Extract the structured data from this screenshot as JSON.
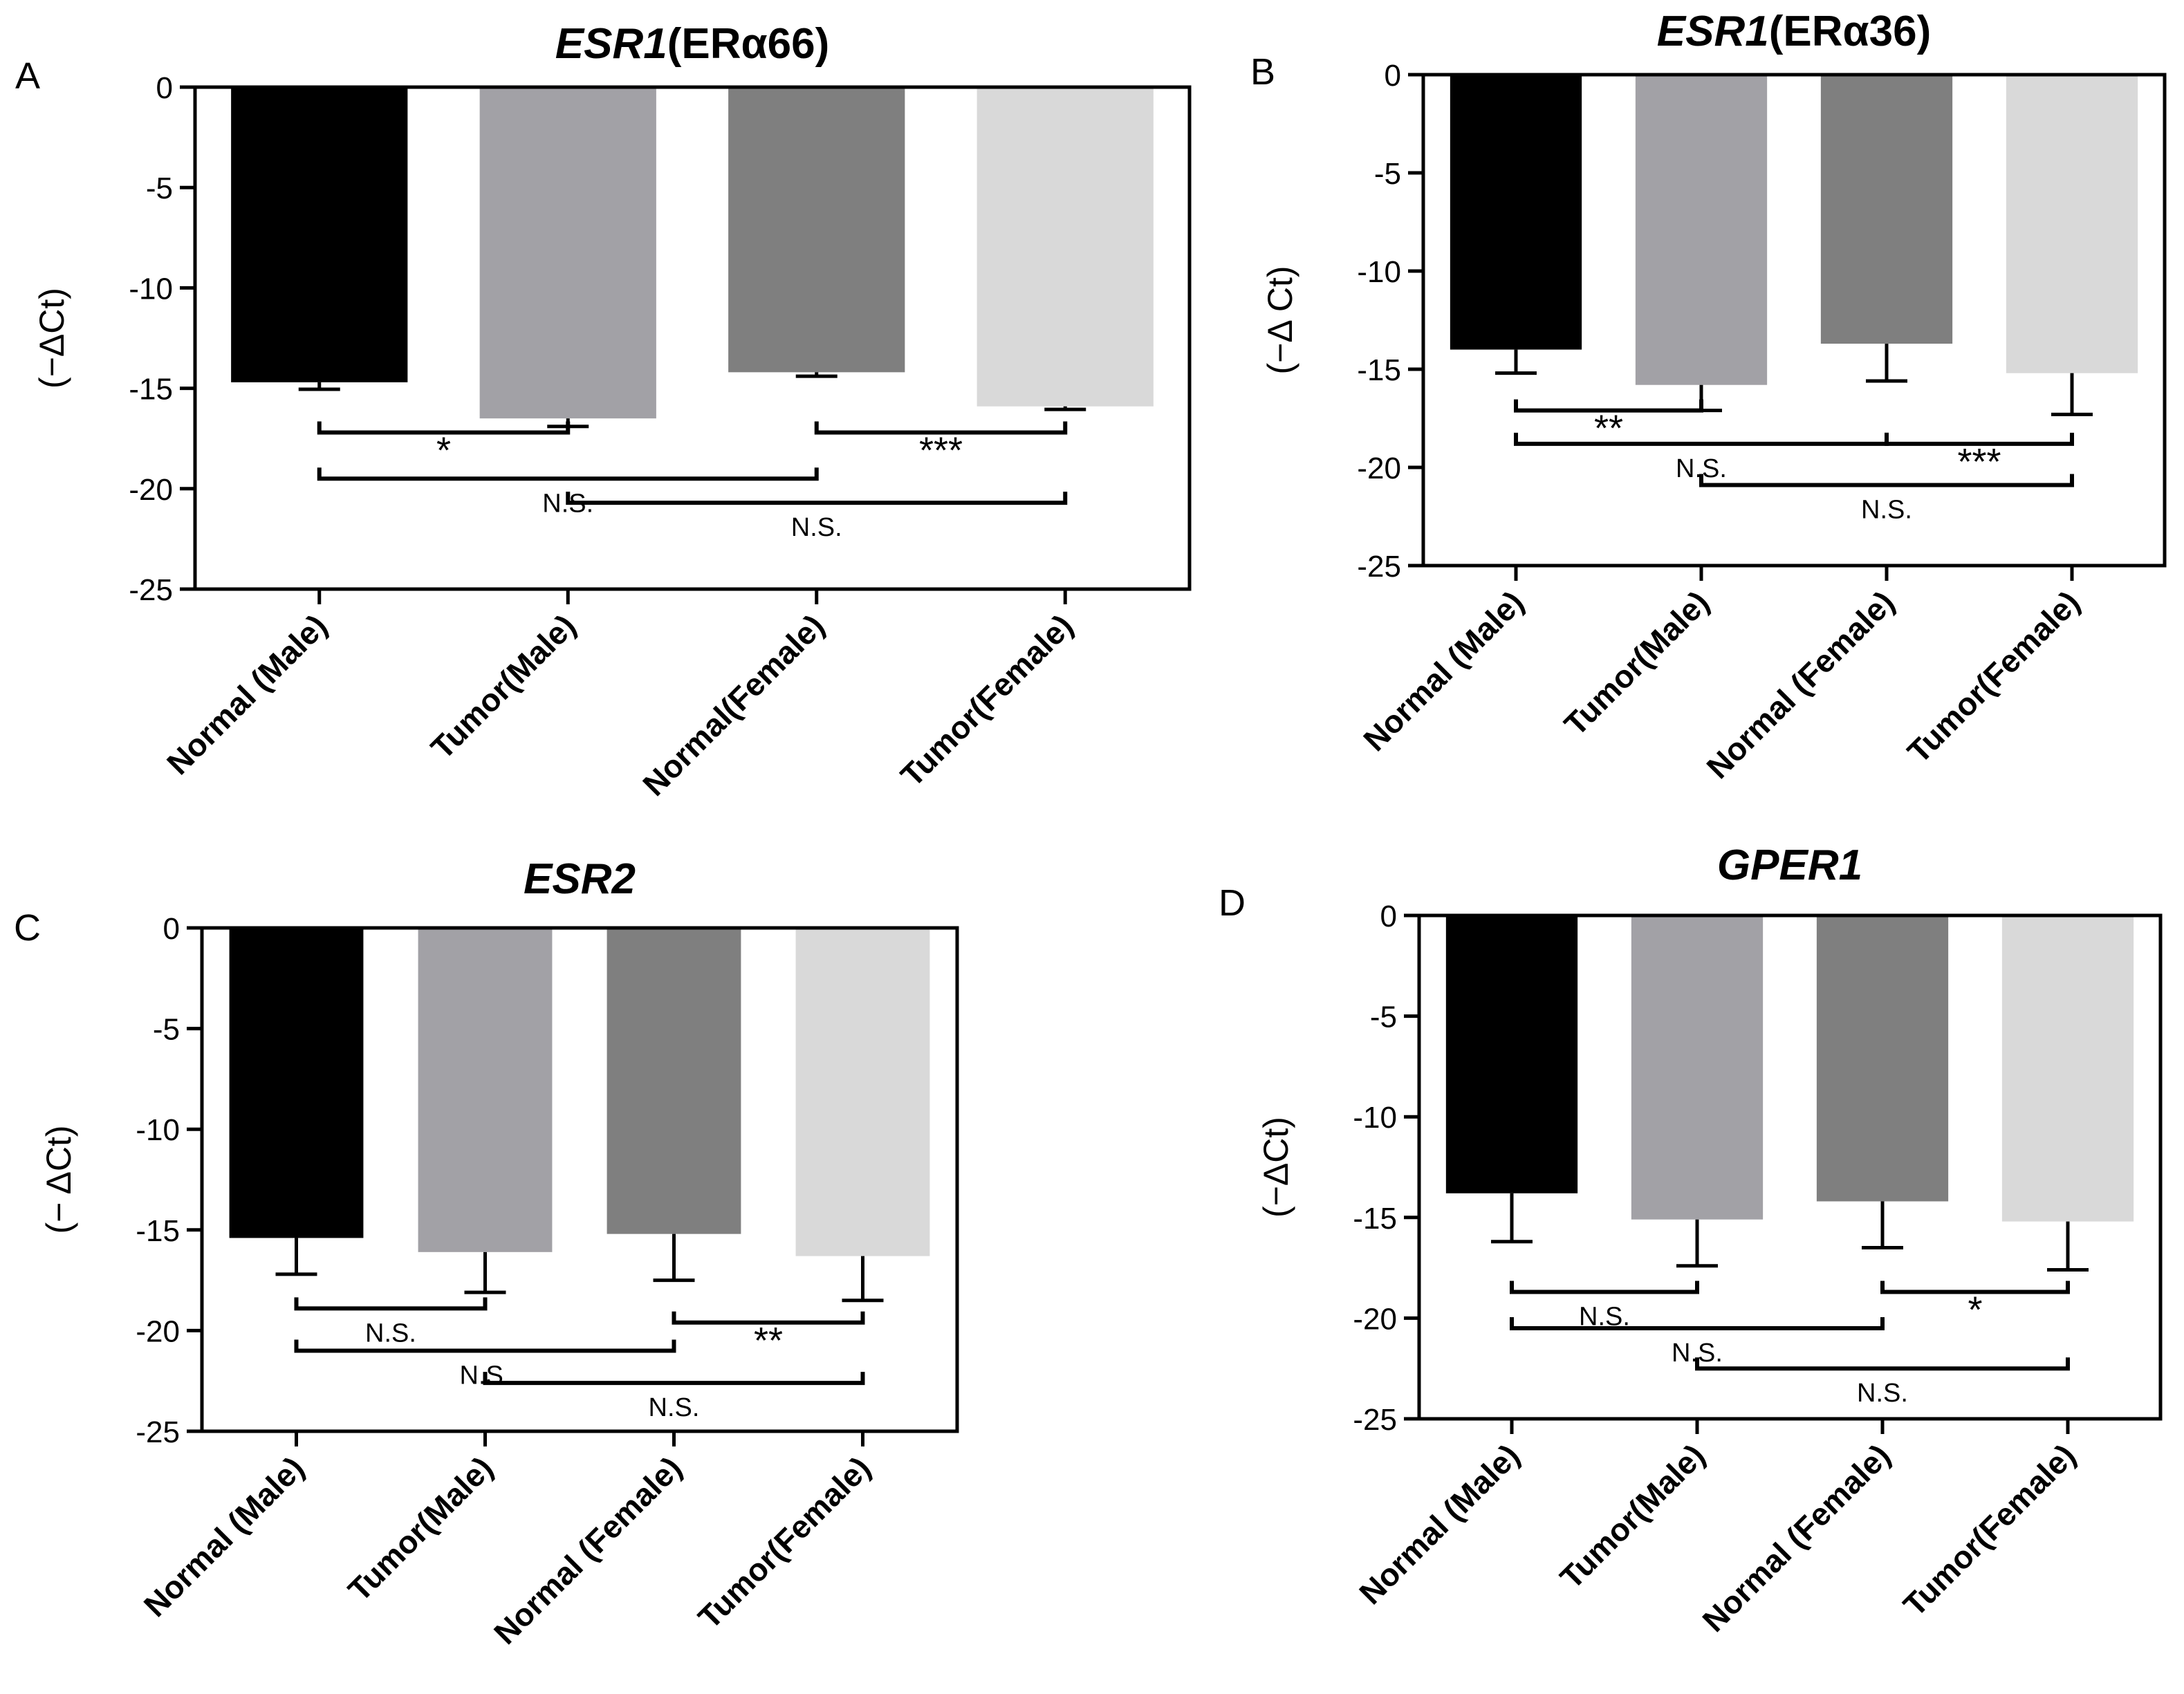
{
  "chart_data": [
    {
      "type": "bar",
      "panel_label": "A",
      "title": "ESR1",
      "title_suffix": "(ERα66)",
      "ylabel": "(−ΔCt)",
      "ylim": [
        -25,
        0
      ],
      "yticks": [
        0,
        -5,
        -10,
        -15,
        -20,
        -25
      ],
      "categories": [
        "Normal (Male)",
        "Tumor(Male)",
        "Normal(Female)",
        "Tumor(Female)"
      ],
      "values": [
        -14.7,
        -16.5,
        -14.2,
        -15.9
      ],
      "errors": [
        0.35,
        0.4,
        0.2,
        0.15
      ],
      "colors": [
        "#000000",
        "#a2a1a6",
        "#7f7f7f",
        "#d9d9d9"
      ],
      "significance": [
        {
          "from": 0,
          "to": 1,
          "label": "*",
          "y": -17.2
        },
        {
          "from": 2,
          "to": 3,
          "label": "***",
          "y": -17.2
        },
        {
          "from": 0,
          "to": 2,
          "label": "N.S.",
          "y": -19.5
        },
        {
          "from": 1,
          "to": 3,
          "label": "N.S.",
          "y": -20.7
        }
      ]
    },
    {
      "type": "bar",
      "panel_label": "B",
      "title": "ESR1",
      "title_suffix": "(ERα36)",
      "ylabel": "(−Δ Ct)",
      "ylim": [
        -25,
        0
      ],
      "yticks": [
        0,
        -5,
        -10,
        -15,
        -20,
        -25
      ],
      "categories": [
        "Normal (Male)",
        "Tumor(Male)",
        "Normal (Female)",
        "Tumor(Female)"
      ],
      "values": [
        -14.0,
        -15.8,
        -13.7,
        -15.2
      ],
      "errors": [
        1.2,
        1.3,
        1.9,
        2.1
      ],
      "colors": [
        "#000000",
        "#a2a1a6",
        "#7f7f7f",
        "#d9d9d9"
      ],
      "significance": [
        {
          "from": 0,
          "to": 1,
          "label": "**",
          "y": -17.1
        },
        {
          "from": 0,
          "to": 2,
          "label": "N.S.",
          "y": -18.8
        },
        {
          "from": 2,
          "to": 3,
          "label": "***",
          "y": -18.8
        },
        {
          "from": 1,
          "to": 3,
          "label": "N.S.",
          "y": -20.9
        }
      ]
    },
    {
      "type": "bar",
      "panel_label": "C",
      "title": "ESR2",
      "title_suffix": "",
      "ylabel": "(− ΔCt)",
      "ylim": [
        -25,
        0
      ],
      "yticks": [
        0,
        -5,
        -10,
        -15,
        -20,
        -25
      ],
      "categories": [
        "Normal (Male)",
        "Tumor(Male)",
        "Normal (Female)",
        "Tumor(Female)"
      ],
      "values": [
        -15.4,
        -16.1,
        -15.2,
        -16.3
      ],
      "errors": [
        1.8,
        2.0,
        2.3,
        2.2
      ],
      "colors": [
        "#000000",
        "#a2a1a6",
        "#7f7f7f",
        "#d9d9d9"
      ],
      "significance": [
        {
          "from": 0,
          "to": 1,
          "label": "N.S.",
          "y": -18.9
        },
        {
          "from": 2,
          "to": 3,
          "label": "**",
          "y": -19.6
        },
        {
          "from": 0,
          "to": 2,
          "label": "N.S.",
          "y": -21.0
        },
        {
          "from": 1,
          "to": 3,
          "label": "N.S.",
          "y": -22.6
        }
      ]
    },
    {
      "type": "bar",
      "panel_label": "D",
      "title": "GPER1",
      "title_suffix": "",
      "ylabel": "(−ΔCt)",
      "ylim": [
        -25,
        0
      ],
      "yticks": [
        0,
        -5,
        -10,
        -15,
        -20,
        -25
      ],
      "categories": [
        "Normal (Male)",
        "Tumor(Male)",
        "Normal (Female)",
        "Tumor(Female)"
      ],
      "values": [
        -13.8,
        -15.1,
        -14.2,
        -15.2
      ],
      "errors": [
        2.4,
        2.3,
        2.3,
        2.4
      ],
      "colors": [
        "#000000",
        "#a2a1a6",
        "#7f7f7f",
        "#d9d9d9"
      ],
      "significance": [
        {
          "from": 0,
          "to": 1,
          "label": "N.S.",
          "y": -18.7
        },
        {
          "from": 2,
          "to": 3,
          "label": "*",
          "y": -18.7
        },
        {
          "from": 0,
          "to": 2,
          "label": "N.S.",
          "y": -20.5
        },
        {
          "from": 1,
          "to": 3,
          "label": "N.S.",
          "y": -22.5
        }
      ]
    }
  ]
}
